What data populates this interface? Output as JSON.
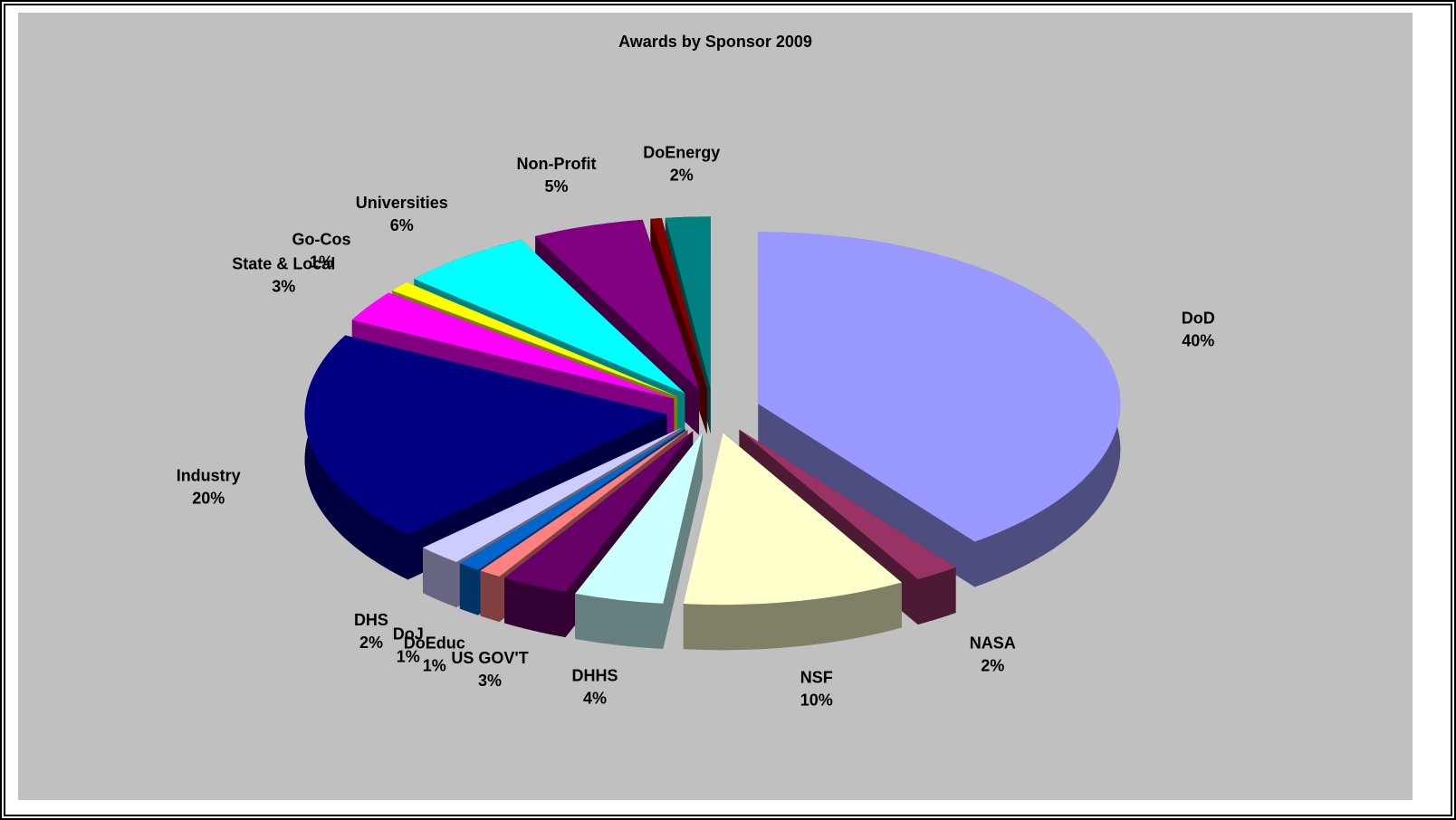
{
  "chart_data": {
    "type": "pie3d",
    "title": "Awards by Sponsor 2009",
    "categories": [
      "DoD",
      "NASA",
      "NSF",
      "DHHS",
      "US GOV'T",
      "DoEduc",
      "DoJ",
      "DHS",
      "Industry",
      "State & Local",
      "Go-Cos",
      "Universities",
      "Non-Profit",
      null,
      "DoEnergy"
    ],
    "values": [
      40,
      2,
      10,
      4,
      3,
      1,
      1,
      2,
      20,
      3,
      1,
      6,
      5,
      0.5,
      2
    ],
    "value_labels": [
      "40%",
      "2%",
      "10%",
      "4%",
      "3%",
      "1%",
      "1%",
      "2%",
      "20%",
      "3%",
      "1%",
      "6%",
      "5%",
      null,
      "2%"
    ],
    "colors": [
      "#9999ff",
      "#993366",
      "#ffffcc",
      "#ccffff",
      "#660066",
      "#ff8080",
      "#0066cc",
      "#ccccff",
      "#000080",
      "#ff00ff",
      "#ffff00",
      "#00ffff",
      "#800080",
      "#800000",
      "#008080"
    ]
  }
}
